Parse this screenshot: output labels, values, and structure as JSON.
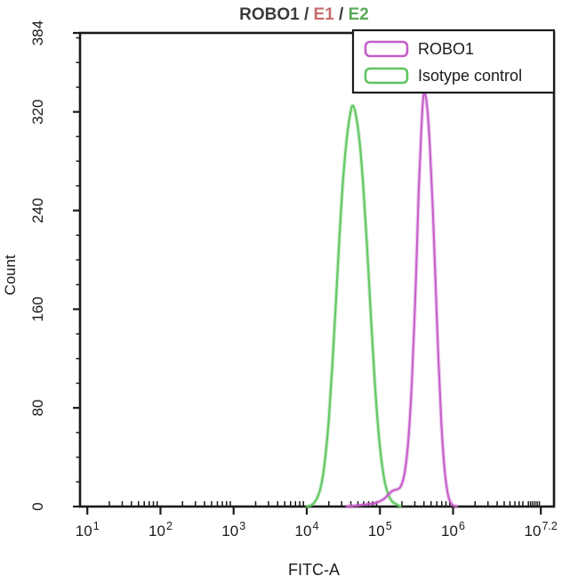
{
  "title": {
    "parts": [
      {
        "text": "ROBO1 / ",
        "color": "#3b3b3b"
      },
      {
        "text": "E1",
        "color": "#c76b6b"
      },
      {
        "text": " / ",
        "color": "#3b3b3b"
      },
      {
        "text": "E2",
        "color": "#57aa57"
      }
    ]
  },
  "legend": {
    "items": [
      {
        "label": "ROBO1",
        "color": "#c45cc8"
      },
      {
        "label": "Isotype control",
        "color": "#5fc55f"
      }
    ]
  },
  "chart_data": {
    "type": "line",
    "title": "ROBO1 / E1 / E2",
    "xlabel": "FITC-A",
    "ylabel": "Count",
    "x_scale": "log10",
    "x_log_range": [
      0.9,
      7.38
    ],
    "x_ticks": [
      {
        "base": "10",
        "exp": "1"
      },
      {
        "base": "10",
        "exp": "2"
      },
      {
        "base": "10",
        "exp": "3"
      },
      {
        "base": "10",
        "exp": "4"
      },
      {
        "base": "10",
        "exp": "5"
      },
      {
        "base": "10",
        "exp": "6"
      },
      {
        "base": "10",
        "exp": "7.2"
      }
    ],
    "x_minor_extra_logs": [
      7.03,
      7.06,
      7.09,
      7.12,
      7.15,
      7.18
    ],
    "y_ticks": [
      0,
      80,
      160,
      240,
      320,
      384
    ],
    "y_minor_step": 20,
    "ylim": [
      0,
      384
    ],
    "grid": false,
    "legend_position": "top-right",
    "axis_color": "#1a1a1a",
    "series": [
      {
        "name": "Isotype control",
        "color": "#5fc55f",
        "peak_count": 325,
        "peak_log_x": 4.63,
        "points": [
          [
            4.0,
            0
          ],
          [
            4.06,
            1
          ],
          [
            4.1,
            3
          ],
          [
            4.15,
            8
          ],
          [
            4.2,
            18
          ],
          [
            4.25,
            38
          ],
          [
            4.3,
            70
          ],
          [
            4.35,
            115
          ],
          [
            4.4,
            168
          ],
          [
            4.45,
            222
          ],
          [
            4.5,
            268
          ],
          [
            4.55,
            300
          ],
          [
            4.6,
            320
          ],
          [
            4.63,
            325
          ],
          [
            4.67,
            318
          ],
          [
            4.72,
            297
          ],
          [
            4.77,
            262
          ],
          [
            4.82,
            215
          ],
          [
            4.87,
            162
          ],
          [
            4.92,
            110
          ],
          [
            4.97,
            68
          ],
          [
            5.02,
            38
          ],
          [
            5.07,
            19
          ],
          [
            5.12,
            9
          ],
          [
            5.17,
            4
          ],
          [
            5.22,
            2
          ],
          [
            5.28,
            0
          ]
        ]
      },
      {
        "name": "ROBO1",
        "color": "#c45cc8",
        "peak_count": 335,
        "peak_log_x": 5.6,
        "points": [
          [
            4.55,
            0
          ],
          [
            4.7,
            1
          ],
          [
            4.85,
            2
          ],
          [
            4.95,
            3
          ],
          [
            5.05,
            6
          ],
          [
            5.12,
            10
          ],
          [
            5.18,
            13
          ],
          [
            5.24,
            14
          ],
          [
            5.29,
            17
          ],
          [
            5.34,
            28
          ],
          [
            5.39,
            55
          ],
          [
            5.44,
            105
          ],
          [
            5.49,
            180
          ],
          [
            5.53,
            255
          ],
          [
            5.57,
            310
          ],
          [
            5.6,
            335
          ],
          [
            5.64,
            327
          ],
          [
            5.68,
            295
          ],
          [
            5.72,
            245
          ],
          [
            5.76,
            182
          ],
          [
            5.8,
            120
          ],
          [
            5.84,
            68
          ],
          [
            5.88,
            33
          ],
          [
            5.92,
            13
          ],
          [
            5.96,
            4
          ],
          [
            6.0,
            1
          ],
          [
            6.05,
            0
          ]
        ]
      }
    ]
  }
}
